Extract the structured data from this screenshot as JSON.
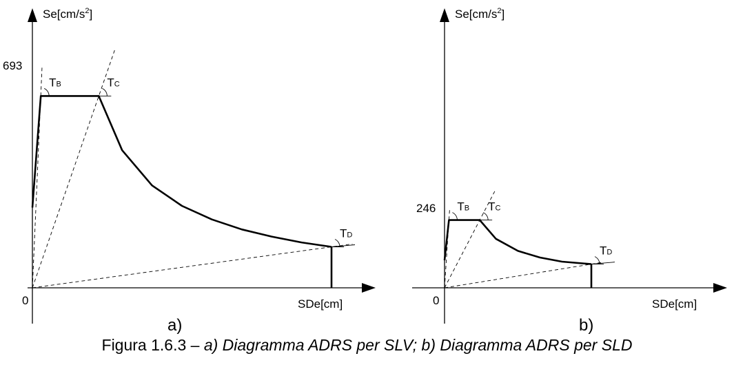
{
  "chart_data": [
    {
      "type": "line",
      "panel_label": "a)",
      "y_axis_title": "Se[cm/s",
      "y_axis_sup": "2",
      "y_axis_end": "]",
      "x_axis_title": "SDe[cm]",
      "origin_label": "0",
      "y_tick_label": "693",
      "period_labels": {
        "TB": "B",
        "TC": "C",
        "TD": "D",
        "prefix": "T"
      },
      "plateau_value": 693,
      "ylim": [
        0,
        1010
      ],
      "xlim": [
        0,
        1
      ],
      "series": [
        {
          "values_x": [
            0,
            0.028,
            0.222,
            0.3,
            0.4,
            0.5,
            0.6,
            0.7,
            0.8,
            0.9,
            1.0
          ],
          "values_y": [
            290,
            693,
            693,
            497,
            370,
            296,
            247,
            211,
            185,
            164,
            148
          ]
        }
      ],
      "ordinates": {
        "TB_x": 0.028,
        "TC_x": 0.222,
        "TD_x": 1.0,
        "drop_to": 0
      }
    },
    {
      "type": "line",
      "panel_label": "b)",
      "y_axis_title": "Se[cm/s",
      "y_axis_sup": "2",
      "y_axis_end": "]",
      "x_axis_title": "SDe[cm]",
      "origin_label": "0",
      "y_tick_label": "246",
      "period_labels": {
        "TB": "B",
        "TC": "C",
        "TD": "D",
        "prefix": "T"
      },
      "plateau_value": 246,
      "ylim": [
        0,
        1000
      ],
      "xlim": [
        0,
        1
      ],
      "series": [
        {
          "values_x": [
            0,
            0.03,
            0.24,
            0.35,
            0.5,
            0.65,
            0.8,
            1.0
          ],
          "values_y": [
            100,
            246,
            246,
            178,
            134,
            110,
            95,
            86
          ]
        }
      ],
      "ordinates": {
        "TB_x": 0.03,
        "TC_x": 0.24,
        "TD_x": 1.0,
        "drop_to": 0
      }
    }
  ],
  "caption": {
    "prefix": "Figura 1.6.3 – ",
    "italic": "a) Diagramma ADRS per SLV; b) Diagramma ADRS per SLD"
  }
}
